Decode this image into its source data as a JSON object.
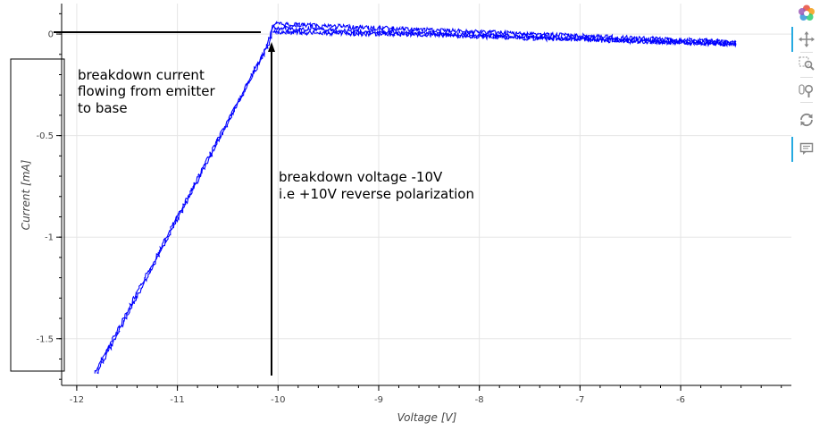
{
  "chart_data": {
    "type": "line",
    "title": "",
    "xlabel": "Voltage [V]",
    "ylabel": "Current [mA]",
    "xlim": [
      -12.15,
      -4.9
    ],
    "ylim": [
      -1.73,
      0.15
    ],
    "x_ticks": [
      -12,
      -11,
      -10,
      -9,
      -8,
      -7,
      -6
    ],
    "y_ticks": [
      0,
      -0.5,
      -1,
      -1.5
    ],
    "x_tick_labels": [
      "-12",
      "-11",
      "-10",
      "-9",
      "-8",
      "-7",
      "-6"
    ],
    "y_tick_labels": [
      "0",
      "-0.5",
      "-1",
      "-1.5"
    ],
    "grid": true,
    "series": [
      {
        "color": "#0000ff",
        "branches": [
          {
            "x": [
              -11.82,
              -10.12,
              -10.05,
              -5.45
            ],
            "y": [
              -1.67,
              -0.07,
              0.05,
              -0.04
            ]
          },
          {
            "x": [
              -11.8,
              -10.1,
              -10.05,
              -5.45
            ],
            "y": [
              -1.67,
              -0.06,
              0.03,
              -0.05
            ]
          },
          {
            "x": [
              -10.05,
              -8.5,
              -7.5,
              -6.5,
              -5.45
            ],
            "y": [
              0.01,
              -0.005,
              -0.02,
              -0.035,
              -0.05
            ]
          }
        ]
      }
    ],
    "annotations": [
      {
        "text_lines": [
          "breakdown current",
          "flowing from emitter",
          "to base"
        ]
      },
      {
        "text_lines": [
          "breakdown voltage  -10V",
          "i.e  +10V reverse polarization"
        ]
      }
    ]
  },
  "toolbar": {
    "tools": [
      "bokeh-logo-icon",
      "pan-icon",
      "box-zoom-icon",
      "wheel-zoom-icon",
      "reset-icon",
      "hover-icon"
    ]
  }
}
